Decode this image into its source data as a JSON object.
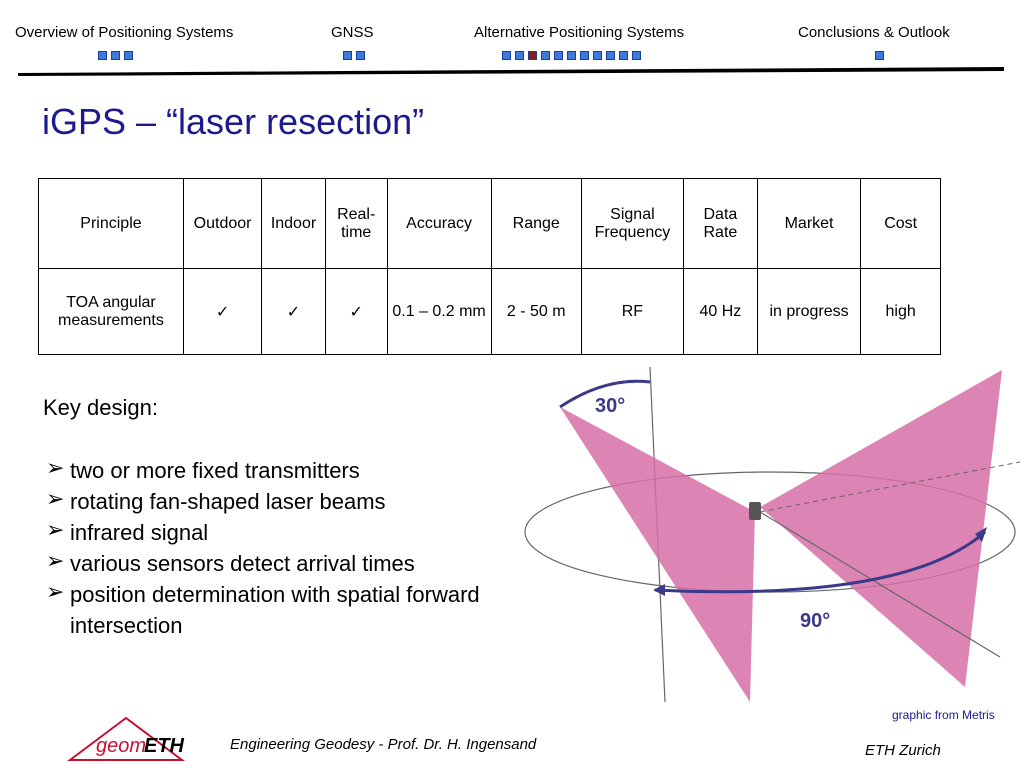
{
  "nav": [
    "Overview of Positioning Systems",
    "GNSS",
    "Alternative Positioning Systems",
    "Conclusions & Outlook"
  ],
  "title": "iGPS – “laser resection”",
  "table": {
    "header": [
      "Principle",
      "Outdoor",
      "Indoor",
      "Real-time",
      "Accuracy",
      "Range",
      "Signal Frequency",
      "Data Rate",
      "Market",
      "Cost"
    ],
    "rows": [
      [
        "TOA angular measurements",
        "✓",
        "✓",
        "✓",
        "0.1 – 0.2 mm",
        "2 - 50 m",
        "RF",
        "40 Hz",
        "in progress",
        "high"
      ]
    ]
  },
  "key_design": {
    "heading": "Key design:",
    "items": [
      "two or more fixed transmitters",
      "rotating fan-shaped laser beams",
      "infrared signal",
      "various sensors detect arrival times",
      "position determination with spatial forward intersection"
    ]
  },
  "figure": {
    "angle_top": "30°",
    "angle_bottom": "90°",
    "credit": "graphic from Metris"
  },
  "footer": {
    "logo_left": "geom",
    "logo_right": "ETH",
    "text": "Engineering Geodesy - Prof. Dr. H. Ingensand",
    "institution": "ETH Zurich"
  }
}
